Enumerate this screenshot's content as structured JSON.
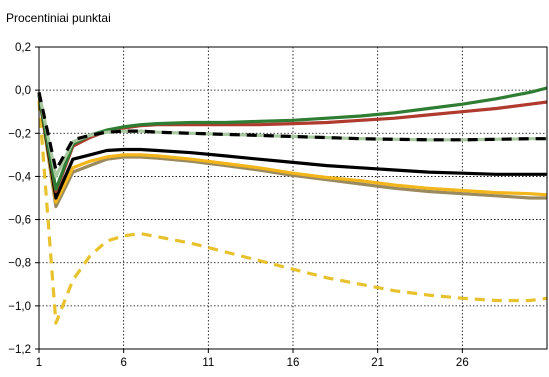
{
  "chart_data": {
    "type": "line",
    "title": "",
    "ylabel": "Procentiniai punktai",
    "xlabel": "",
    "xlim": [
      1,
      31
    ],
    "ylim": [
      -1.2,
      0.2
    ],
    "xticks": [
      1,
      6,
      11,
      16,
      21,
      26
    ],
    "yticks": [
      0.2,
      0.0,
      -0.2,
      -0.4,
      -0.6,
      -0.8,
      -1.0,
      -1.2
    ],
    "ytick_labels": [
      "0,2",
      "0,0",
      "−0,2",
      "−0,4",
      "−0,6",
      "−0,8",
      "−1,0",
      "−1,2"
    ],
    "xtick_labels": [
      "1",
      "6",
      "11",
      "16",
      "21",
      "26"
    ],
    "grid": true,
    "grid_style": "dotted",
    "series": [
      {
        "color": "#e8c22c",
        "dash": "dashed",
        "x": [
          1,
          2,
          3,
          4,
          5,
          6,
          7,
          8,
          10,
          12,
          14,
          16,
          18,
          20,
          22,
          24,
          26,
          28,
          30,
          31
        ],
        "y": [
          -0.05,
          -1.08,
          -0.88,
          -0.77,
          -0.7,
          -0.675,
          -0.665,
          -0.68,
          -0.71,
          -0.75,
          -0.79,
          -0.83,
          -0.87,
          -0.9,
          -0.93,
          -0.95,
          -0.965,
          -0.975,
          -0.975,
          -0.965
        ]
      },
      {
        "color": "#9a8a5e",
        "dash": "solid",
        "x": [
          1,
          2,
          3,
          4,
          5,
          6,
          7,
          8,
          10,
          12,
          14,
          16,
          18,
          20,
          22,
          24,
          26,
          28,
          30,
          31
        ],
        "y": [
          -0.02,
          -0.54,
          -0.38,
          -0.35,
          -0.32,
          -0.31,
          -0.31,
          -0.315,
          -0.33,
          -0.35,
          -0.37,
          -0.395,
          -0.415,
          -0.435,
          -0.455,
          -0.47,
          -0.48,
          -0.49,
          -0.5,
          -0.5
        ]
      },
      {
        "color": "#f2b51a",
        "dash": "solid",
        "x": [
          1,
          2,
          3,
          4,
          5,
          6,
          7,
          8,
          10,
          12,
          14,
          16,
          18,
          20,
          22,
          24,
          26,
          28,
          30,
          31
        ],
        "y": [
          -0.02,
          -0.52,
          -0.36,
          -0.33,
          -0.31,
          -0.3,
          -0.3,
          -0.305,
          -0.32,
          -0.34,
          -0.36,
          -0.385,
          -0.405,
          -0.42,
          -0.44,
          -0.455,
          -0.465,
          -0.475,
          -0.48,
          -0.485
        ]
      },
      {
        "color": "#000000",
        "dash": "solid",
        "x": [
          1,
          2,
          3,
          4,
          5,
          6,
          7,
          8,
          10,
          12,
          14,
          16,
          18,
          20,
          22,
          24,
          26,
          28,
          30,
          31
        ],
        "y": [
          -0.02,
          -0.5,
          -0.32,
          -0.3,
          -0.28,
          -0.275,
          -0.275,
          -0.28,
          -0.29,
          -0.305,
          -0.32,
          -0.335,
          -0.35,
          -0.36,
          -0.37,
          -0.38,
          -0.385,
          -0.39,
          -0.39,
          -0.39
        ]
      },
      {
        "color": "#b03a2e",
        "dash": "solid",
        "x": [
          1,
          2,
          3,
          4,
          5,
          6,
          7,
          8,
          10,
          12,
          14,
          16,
          18,
          20,
          22,
          24,
          26,
          28,
          30,
          31
        ],
        "y": [
          -0.02,
          -0.47,
          -0.26,
          -0.22,
          -0.19,
          -0.175,
          -0.165,
          -0.16,
          -0.16,
          -0.16,
          -0.16,
          -0.155,
          -0.15,
          -0.14,
          -0.13,
          -0.115,
          -0.1,
          -0.085,
          -0.065,
          -0.055
        ]
      },
      {
        "color": "#2e7d32",
        "dash": "solid",
        "x": [
          1,
          2,
          3,
          4,
          5,
          6,
          7,
          8,
          10,
          12,
          14,
          16,
          18,
          20,
          22,
          24,
          26,
          28,
          30,
          31
        ],
        "y": [
          -0.02,
          -0.46,
          -0.25,
          -0.21,
          -0.185,
          -0.17,
          -0.16,
          -0.155,
          -0.15,
          -0.15,
          -0.145,
          -0.14,
          -0.13,
          -0.12,
          -0.105,
          -0.085,
          -0.065,
          -0.04,
          -0.01,
          0.01
        ]
      },
      {
        "color": "#a8c9a0",
        "dash": "solid",
        "x": [
          1,
          2,
          3,
          4,
          5,
          6,
          7,
          8,
          10,
          12,
          14,
          16,
          18,
          20,
          22,
          24,
          26,
          28,
          30,
          31
        ],
        "y": [
          -0.01,
          -0.4,
          -0.24,
          -0.21,
          -0.195,
          -0.19,
          -0.19,
          -0.195,
          -0.2,
          -0.205,
          -0.21,
          -0.215,
          -0.22,
          -0.225,
          -0.228,
          -0.23,
          -0.23,
          -0.228,
          -0.225,
          -0.225
        ]
      },
      {
        "color": "#000000",
        "dash": "dashed",
        "x": [
          1,
          2,
          3,
          4,
          5,
          6,
          7,
          8,
          10,
          12,
          14,
          16,
          18,
          20,
          22,
          24,
          26,
          28,
          30,
          31
        ],
        "y": [
          -0.01,
          -0.37,
          -0.23,
          -0.21,
          -0.195,
          -0.19,
          -0.19,
          -0.195,
          -0.2,
          -0.205,
          -0.21,
          -0.215,
          -0.22,
          -0.225,
          -0.228,
          -0.23,
          -0.23,
          -0.228,
          -0.225,
          -0.225
        ]
      }
    ]
  }
}
